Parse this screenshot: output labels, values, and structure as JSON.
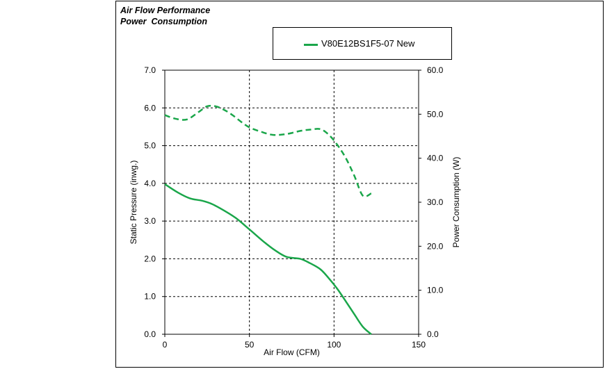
{
  "title_lines": [
    "Air Flow Performance",
    "Power  Consumption"
  ],
  "legend": {
    "label": "V80E12BS1F5-07 New",
    "color": "#1aa64a"
  },
  "chart_data": {
    "type": "line",
    "title": "Air Flow Performance\nPower  Consumption",
    "xlabel": "Air Flow (CFM)",
    "ylabel": "Static Pressure (inwg.)",
    "y2label": "Power Consumption (W)",
    "xlim": [
      0,
      150
    ],
    "ylim": [
      0,
      7
    ],
    "y2lim": [
      0,
      60
    ],
    "x_ticks": [
      "0",
      "50",
      "100",
      "150"
    ],
    "y_ticks": [
      "0.0",
      "1.0",
      "2.0",
      "3.0",
      "4.0",
      "5.0",
      "6.0",
      "7.0"
    ],
    "y2_ticks": [
      "0.0",
      "10.0",
      "20.0",
      "30.0",
      "40.0",
      "50.0",
      "60.0"
    ],
    "grid": true,
    "legend_position": "top-right",
    "series": [
      {
        "name": "V80E12BS1F5-07 New",
        "axis": "left",
        "style": "solid",
        "color": "#1aa64a",
        "x": [
          0,
          8,
          15,
          22,
          28,
          35,
          42,
          50,
          58,
          65,
          72,
          80,
          86,
          92,
          97,
          102,
          107,
          112,
          117,
          122
        ],
        "y": [
          3.98,
          3.75,
          3.6,
          3.54,
          3.45,
          3.28,
          3.08,
          2.78,
          2.47,
          2.23,
          2.05,
          2.0,
          1.88,
          1.72,
          1.48,
          1.2,
          0.87,
          0.53,
          0.2,
          0.0
        ]
      },
      {
        "name": "V80E12BS1F5-07 New",
        "axis": "right",
        "style": "dashed",
        "color": "#1aa64a",
        "x": [
          0,
          6,
          13,
          20,
          25,
          30,
          35,
          40,
          45,
          50,
          57,
          64,
          72,
          80,
          86,
          92,
          97,
          102,
          107,
          112,
          117,
          122
        ],
        "y": [
          49.8,
          49.0,
          48.8,
          50.5,
          51.8,
          51.8,
          51.0,
          49.8,
          48.3,
          47.0,
          46.0,
          45.3,
          45.5,
          46.2,
          46.5,
          46.6,
          45.3,
          43.0,
          40.0,
          36.0,
          31.5,
          32.0
        ]
      }
    ]
  }
}
